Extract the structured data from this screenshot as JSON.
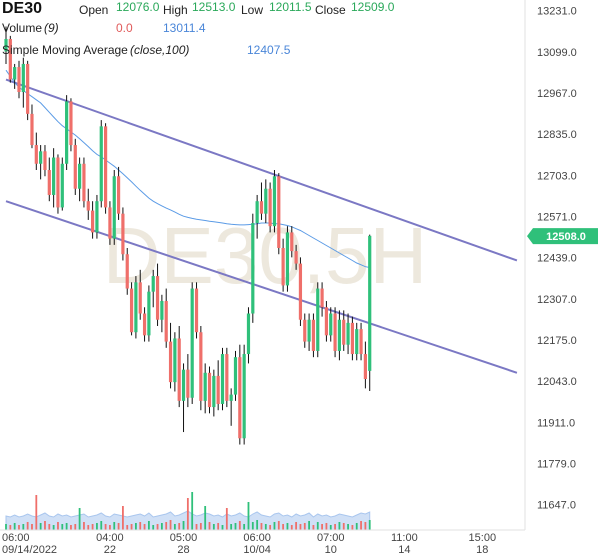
{
  "header": {
    "symbol": "DE30",
    "open_label": "Open",
    "open_value": "12076.0",
    "high_label": "High",
    "high_value": "12513.0",
    "low_label": "Low",
    "low_value": "12011.5",
    "close_label": "Close",
    "close_value": "12509.0",
    "volume_label": "Volume",
    "volume_param": "(9)",
    "volume_value1": "0.0",
    "volume_value2": "13011.4",
    "sma_label": "Simple Moving Average",
    "sma_param": "(close,100)",
    "sma_value": "12407.5"
  },
  "watermark": "DE30,5H",
  "price_label": "12508.0",
  "colors": {
    "up": "#2fc07a",
    "down": "#ef6f6a",
    "sma": "#5b9be6",
    "channel": "#7b78c4",
    "label_bg": "#2fc07a",
    "volume_area": "#a9c6ee"
  },
  "chart_data": {
    "type": "candlestick",
    "y_axis": {
      "ticks": [
        13231.0,
        13099.0,
        12967.0,
        12835.0,
        12703.0,
        12571.0,
        12439.0,
        12307.0,
        12175.0,
        12043.0,
        11911.0,
        11779.0,
        11647.0
      ],
      "range": [
        11566,
        13265
      ],
      "position": "right"
    },
    "x_axis": {
      "ticks": [
        {
          "time": "06:00",
          "date": "09/14/2022",
          "index": 0
        },
        {
          "time": "04:00",
          "date": "22",
          "index": 24
        },
        {
          "time": "05:00",
          "date": "28",
          "index": 41
        },
        {
          "time": "06:00",
          "date": "10/04",
          "index": 58
        },
        {
          "time": "07:00",
          "date": "10",
          "index": 75
        },
        {
          "time": "11:00",
          "date": "14",
          "index": 92
        },
        {
          "time": "15:00",
          "date": "18",
          "index": 110
        }
      ]
    },
    "candles": [
      [
        13100,
        13180,
        13060,
        13140
      ],
      [
        13140,
        13150,
        13000,
        13010
      ],
      [
        13010,
        13060,
        12980,
        13050
      ],
      [
        13050,
        13070,
        12950,
        12970
      ],
      [
        12970,
        13080,
        12920,
        13060
      ],
      [
        13060,
        13070,
        12880,
        12900
      ],
      [
        12900,
        12930,
        12790,
        12800
      ],
      [
        12800,
        12840,
        12720,
        12740
      ],
      [
        12740,
        12800,
        12690,
        12780
      ],
      [
        12780,
        12800,
        12700,
        12720
      ],
      [
        12720,
        12760,
        12620,
        12640
      ],
      [
        12640,
        12790,
        12600,
        12760
      ],
      [
        12760,
        12770,
        12580,
        12600
      ],
      [
        12600,
        12760,
        12590,
        12740
      ],
      [
        12740,
        12960,
        12720,
        12940
      ],
      [
        12940,
        12950,
        12780,
        12800
      ],
      [
        12800,
        12820,
        12640,
        12660
      ],
      [
        12660,
        12760,
        12620,
        12740
      ],
      [
        12740,
        12760,
        12600,
        12620
      ],
      [
        12620,
        12660,
        12560,
        12590
      ],
      [
        12590,
        12620,
        12500,
        12520
      ],
      [
        12520,
        12640,
        12500,
        12620
      ],
      [
        12620,
        12880,
        12600,
        12860
      ],
      [
        12860,
        12870,
        12580,
        12600
      ],
      [
        12600,
        12620,
        12480,
        12500
      ],
      [
        12500,
        12720,
        12480,
        12700
      ],
      [
        12700,
        12730,
        12560,
        12580
      ],
      [
        12580,
        12600,
        12430,
        12450
      ],
      [
        12450,
        12470,
        12320,
        12340
      ],
      [
        12340,
        12360,
        12190,
        12200
      ],
      [
        12200,
        12380,
        12180,
        12360
      ],
      [
        12360,
        12400,
        12240,
        12260
      ],
      [
        12260,
        12280,
        12170,
        12190
      ],
      [
        12190,
        12350,
        12170,
        12330
      ],
      [
        12330,
        12400,
        12280,
        12380
      ],
      [
        12380,
        12420,
        12220,
        12240
      ],
      [
        12240,
        12320,
        12200,
        12300
      ],
      [
        12300,
        12340,
        12150,
        12170
      ],
      [
        12170,
        12230,
        12020,
        12040
      ],
      [
        12040,
        12200,
        12010,
        12180
      ],
      [
        12180,
        12220,
        11960,
        11980
      ],
      [
        11980,
        12100,
        11880,
        12080
      ],
      [
        12080,
        12130,
        11960,
        11990
      ],
      [
        11990,
        12360,
        11970,
        12340
      ],
      [
        12340,
        12360,
        12180,
        12200
      ],
      [
        12200,
        12220,
        11950,
        11980
      ],
      [
        11980,
        12100,
        11940,
        12070
      ],
      [
        12070,
        12090,
        11940,
        11960
      ],
      [
        11960,
        12080,
        11930,
        12060
      ],
      [
        12060,
        12110,
        11950,
        11970
      ],
      [
        11970,
        12150,
        11950,
        12130
      ],
      [
        12130,
        12150,
        11960,
        11980
      ],
      [
        11980,
        12020,
        11900,
        12000
      ],
      [
        12000,
        12140,
        11980,
        12120
      ],
      [
        12120,
        12160,
        11840,
        11860
      ],
      [
        11860,
        12160,
        11840,
        12130
      ],
      [
        12130,
        12280,
        12100,
        12260
      ],
      [
        12260,
        12580,
        12230,
        12550
      ],
      [
        12550,
        12640,
        12500,
        12620
      ],
      [
        12620,
        12680,
        12560,
        12580
      ],
      [
        12580,
        12690,
        12550,
        12660
      ],
      [
        12660,
        12680,
        12520,
        12540
      ],
      [
        12540,
        12720,
        12520,
        12700
      ],
      [
        12700,
        12710,
        12450,
        12470
      ],
      [
        12470,
        12500,
        12330,
        12350
      ],
      [
        12350,
        12540,
        12330,
        12520
      ],
      [
        12520,
        12540,
        12440,
        12460
      ],
      [
        12460,
        12480,
        12400,
        12420
      ],
      [
        12420,
        12440,
        12220,
        12240
      ],
      [
        12240,
        12260,
        12150,
        12170
      ],
      [
        12170,
        12260,
        12140,
        12240
      ],
      [
        12240,
        12260,
        12120,
        12140
      ],
      [
        12140,
        12360,
        12120,
        12340
      ],
      [
        12340,
        12360,
        12250,
        12280
      ],
      [
        12280,
        12300,
        12170,
        12190
      ],
      [
        12190,
        12280,
        12170,
        12260
      ],
      [
        12260,
        12280,
        12120,
        12140
      ],
      [
        12140,
        12270,
        12110,
        12240
      ],
      [
        12240,
        12270,
        12140,
        12160
      ],
      [
        12160,
        12260,
        12130,
        12230
      ],
      [
        12230,
        12250,
        12110,
        12130
      ],
      [
        12130,
        12230,
        12110,
        12210
      ],
      [
        12210,
        12230,
        12110,
        12130
      ],
      [
        12130,
        12170,
        12020,
        12050
      ],
      [
        12076,
        12513,
        12011.5,
        12509
      ]
    ],
    "volume": [
      6,
      5,
      7,
      5,
      6,
      8,
      6,
      5,
      7,
      9,
      6,
      5,
      8,
      6,
      7,
      5,
      6,
      7,
      8,
      5,
      6,
      7,
      9,
      6,
      5,
      8,
      7,
      6,
      5,
      6,
      7,
      8,
      6,
      9,
      5,
      6,
      7,
      8,
      10,
      6,
      7,
      9,
      11,
      8,
      6,
      7,
      9,
      8,
      6,
      7,
      5,
      8,
      6,
      7,
      9,
      6,
      5,
      8,
      10,
      7,
      6,
      5,
      8,
      9,
      6,
      7,
      5,
      8,
      6,
      7,
      9,
      5,
      8,
      6,
      7,
      5,
      6,
      8,
      7,
      6,
      5,
      7,
      9,
      8,
      10
    ],
    "volume_spikes": {
      "7": 35,
      "17": 22,
      "27": 24,
      "42": 32,
      "43": 38,
      "46": 24,
      "51": 22,
      "56": 28,
      "85": 30
    },
    "sma": [
      13040,
      13020,
      13000,
      12985,
      12975,
      12965,
      12955,
      12945,
      12935,
      12920,
      12905,
      12890,
      12875,
      12862,
      12852,
      12842,
      12832,
      12820,
      12808,
      12795,
      12782,
      12770,
      12762,
      12752,
      12742,
      12732,
      12720,
      12708,
      12695,
      12682,
      12668,
      12655,
      12642,
      12630,
      12620,
      12612,
      12605,
      12598,
      12592,
      12585,
      12578,
      12572,
      12568,
      12565,
      12562,
      12560,
      12558,
      12556,
      12554,
      12552,
      12550,
      12548,
      12546,
      12545,
      12544,
      12544,
      12545,
      12546,
      12548,
      12550,
      12550,
      12550,
      12548,
      12548,
      12545,
      12542,
      12538,
      12532,
      12526,
      12518,
      12510,
      12502,
      12494,
      12486,
      12478,
      12470,
      12462,
      12454,
      12446,
      12438,
      12430,
      12422,
      12416,
      12410,
      12407.5
    ],
    "channel_upper": {
      "from": [
        0,
        13010
      ],
      "to": [
        118,
        12430
      ]
    },
    "channel_lower": {
      "from": [
        0,
        12620
      ],
      "to": [
        118,
        12070
      ]
    },
    "last_price": 12508.0
  }
}
